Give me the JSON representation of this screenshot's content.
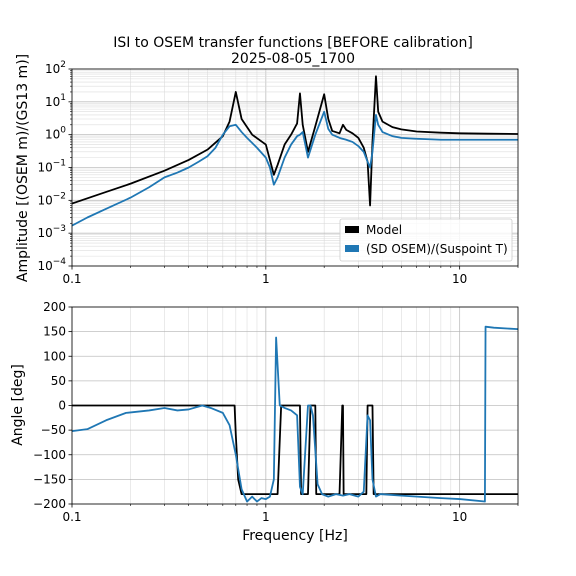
{
  "figure": {
    "title_line1": "ISI to OSEM transfer functions [BEFORE calibration]",
    "title_line2": "2025-08-05_1700",
    "colors": {
      "model": "#000000",
      "measured": "#1f77b4"
    }
  },
  "chart_data": [
    {
      "type": "line",
      "ylabel": "Amplitude [(OSEM m)/(GS13 m)]",
      "xlabel": "",
      "xscale": "log",
      "yscale": "log",
      "xlim": [
        0.1,
        20
      ],
      "ylim": [
        0.0001,
        100
      ],
      "x_tick_labels": [
        "0.1",
        "1",
        "10"
      ],
      "y_tick_labels": [
        "10^-4",
        "10^-3",
        "10^-2",
        "10^-1",
        "10^0",
        "10^1",
        "10^2"
      ],
      "grid": true,
      "legend": {
        "placement": "lower-right",
        "entries": [
          "Model",
          "(SD OSEM)/(Suspoint T)"
        ]
      },
      "series": [
        {
          "name": "Model",
          "color": "#000000",
          "x": [
            0.1,
            0.15,
            0.2,
            0.3,
            0.4,
            0.5,
            0.6,
            0.65,
            0.7,
            0.75,
            0.85,
            1.0,
            1.1,
            1.15,
            1.25,
            1.35,
            1.45,
            1.5,
            1.55,
            1.65,
            1.8,
            2.0,
            2.1,
            2.2,
            2.4,
            2.5,
            2.6,
            2.8,
            3.0,
            3.2,
            3.35,
            3.45,
            3.55,
            3.7,
            3.8,
            4.0,
            4.5,
            5.0,
            6.0,
            8.0,
            10.0,
            14.0,
            20.0
          ],
          "y": [
            0.008,
            0.018,
            0.032,
            0.08,
            0.17,
            0.35,
            0.9,
            2.5,
            20,
            3.0,
            1.0,
            0.5,
            0.06,
            0.12,
            0.5,
            1.0,
            2.2,
            18,
            2.0,
            0.3,
            1.8,
            17,
            3.0,
            1.3,
            1.1,
            2.0,
            1.4,
            1.1,
            0.8,
            0.4,
            0.15,
            0.007,
            0.6,
            60,
            5.0,
            2.5,
            1.7,
            1.45,
            1.25,
            1.15,
            1.1,
            1.07,
            1.05
          ]
        },
        {
          "name": "(SD OSEM)/(Suspoint T)",
          "color": "#1f77b4",
          "x": [
            0.1,
            0.12,
            0.15,
            0.2,
            0.25,
            0.3,
            0.35,
            0.4,
            0.45,
            0.5,
            0.55,
            0.6,
            0.65,
            0.7,
            0.75,
            0.8,
            0.9,
            1.0,
            1.05,
            1.1,
            1.15,
            1.25,
            1.35,
            1.45,
            1.5,
            1.55,
            1.65,
            1.8,
            2.0,
            2.1,
            2.2,
            2.4,
            2.6,
            2.8,
            3.0,
            3.2,
            3.35,
            3.45,
            3.55,
            3.7,
            3.8,
            4.0,
            4.5,
            5.0,
            6.0,
            8.0,
            10.0,
            14.0,
            20.0
          ],
          "y": [
            0.0017,
            0.003,
            0.0055,
            0.012,
            0.025,
            0.05,
            0.07,
            0.1,
            0.15,
            0.22,
            0.4,
            1.0,
            1.8,
            2.0,
            1.2,
            0.8,
            0.4,
            0.2,
            0.1,
            0.03,
            0.05,
            0.2,
            0.5,
            0.9,
            1.0,
            1.2,
            0.2,
            1.0,
            5.0,
            1.5,
            1.0,
            0.8,
            0.7,
            0.6,
            0.45,
            0.3,
            0.15,
            0.1,
            0.3,
            4.0,
            2.0,
            1.2,
            0.9,
            0.8,
            0.75,
            0.7,
            0.7,
            0.7,
            0.7
          ]
        }
      ]
    },
    {
      "type": "line",
      "ylabel": "Angle [deg]",
      "xlabel": "Frequency [Hz]",
      "xscale": "log",
      "yscale": "linear",
      "xlim": [
        0.1,
        20
      ],
      "ylim": [
        -200,
        200
      ],
      "x_tick_labels": [
        "0.1",
        "1",
        "10"
      ],
      "y_tick_labels": [
        "−200",
        "−150",
        "−100",
        "−50",
        "0",
        "50",
        "100",
        "150",
        "200"
      ],
      "grid": true,
      "series": [
        {
          "name": "Model",
          "color": "#000000",
          "x": [
            0.1,
            0.69,
            0.7,
            0.72,
            0.75,
            1.1,
            1.15,
            1.2,
            1.3,
            1.5,
            1.52,
            1.6,
            1.65,
            1.7,
            1.8,
            1.82,
            1.85,
            2.0,
            2.4,
            2.48,
            2.5,
            2.52,
            2.6,
            3.3,
            3.35,
            3.45,
            3.55,
            3.6,
            3.65,
            5.0,
            10.0,
            20.0
          ],
          "y": [
            0,
            0,
            -60,
            -150,
            -180,
            -180,
            -180,
            0,
            0,
            0,
            -180,
            -180,
            -180,
            0,
            0,
            -180,
            -180,
            -180,
            -180,
            0,
            0,
            -180,
            -180,
            -180,
            0,
            0,
            0,
            -180,
            -180,
            -180,
            -180,
            -180
          ]
        },
        {
          "name": "(SD OSEM)/(Suspoint T)",
          "color": "#1f77b4",
          "x": [
            0.1,
            0.12,
            0.15,
            0.19,
            0.25,
            0.3,
            0.35,
            0.4,
            0.47,
            0.52,
            0.6,
            0.65,
            0.7,
            0.75,
            0.8,
            0.85,
            0.9,
            0.95,
            1.0,
            1.05,
            1.1,
            1.13,
            1.18,
            1.25,
            1.35,
            1.45,
            1.5,
            1.55,
            1.65,
            1.7,
            1.75,
            1.85,
            1.95,
            2.1,
            2.3,
            2.5,
            2.7,
            3.0,
            3.2,
            3.35,
            3.45,
            3.55,
            3.7,
            3.9,
            5.0,
            8.0,
            10.0,
            13.5,
            13.6,
            15.0,
            20.0
          ],
          "y": [
            -52,
            -48,
            -30,
            -15,
            -10,
            -5,
            -10,
            -8,
            0,
            -5,
            -15,
            -40,
            -100,
            -170,
            -195,
            -185,
            -195,
            -188,
            -190,
            -185,
            -150,
            138,
            0,
            -5,
            -10,
            -20,
            -165,
            -180,
            0,
            0,
            -20,
            -160,
            -180,
            -185,
            -180,
            -183,
            -180,
            -185,
            -175,
            -20,
            -30,
            -150,
            -185,
            -180,
            -183,
            -188,
            -190,
            -195,
            160,
            158,
            155
          ]
        }
      ]
    }
  ]
}
